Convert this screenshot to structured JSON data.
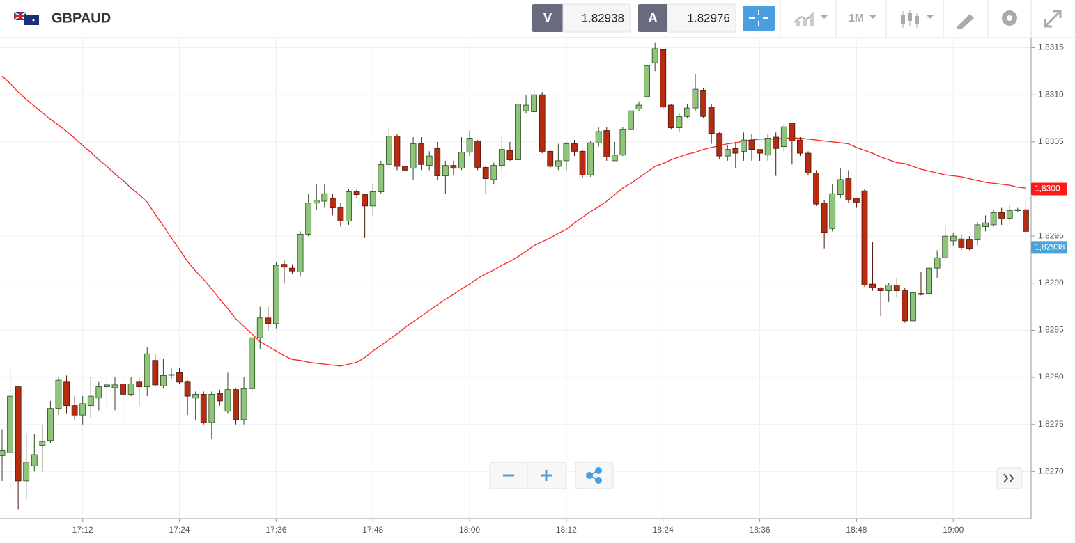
{
  "header": {
    "symbol": "GBPAUD",
    "bid_label": "V",
    "bid": "1.82938",
    "ask_label": "A",
    "ask": "1.82976",
    "timeframe": "1M"
  },
  "chart_data": {
    "type": "candlestick",
    "categories": [
      null,
      null,
      null,
      null,
      null,
      null,
      null,
      null,
      null,
      null,
      "17:12",
      null,
      null,
      null,
      null,
      null,
      null,
      null,
      null,
      null,
      null,
      null,
      "17:24",
      null,
      null,
      null,
      null,
      null,
      null,
      null,
      null,
      null,
      null,
      null,
      "17:36",
      null,
      null,
      null,
      null,
      null,
      null,
      null,
      null,
      null,
      null,
      null,
      "17:48",
      null,
      null,
      null,
      null,
      null,
      null,
      null,
      null,
      null,
      null,
      null,
      "18:00",
      null,
      null,
      null,
      null,
      null,
      null,
      null,
      null,
      null,
      null,
      null,
      "18:12",
      null,
      null,
      null,
      null,
      null,
      null,
      null,
      null,
      null,
      null,
      null,
      "18:24",
      null,
      null,
      null,
      null,
      null,
      null,
      null,
      null,
      null,
      null,
      null,
      "18:36",
      null,
      null,
      null,
      null,
      null,
      null,
      null,
      null,
      null,
      null,
      null,
      "18:48",
      null,
      null,
      null,
      null,
      null,
      null,
      null,
      null,
      null,
      null,
      null,
      "19:00",
      null,
      null,
      null,
      null,
      null,
      null,
      null,
      null,
      null
    ],
    "open": [
      1.82717,
      1.8272,
      1.8279,
      1.8269,
      1.82706,
      1.82728,
      1.82733,
      1.82767,
      1.82795,
      1.8277,
      1.8276,
      1.8277,
      1.82778,
      1.8279,
      1.82789,
      1.82793,
      1.82782,
      1.82795,
      1.8279,
      1.82818,
      1.82791,
      1.82803,
      1.82805,
      1.82795,
      1.82778,
      1.82782,
      1.82752,
      1.82783,
      1.82764,
      1.82787,
      1.82755,
      1.82788,
      1.82842,
      1.82863,
      1.82857,
      1.8292,
      1.82916,
      1.82912,
      1.82952,
      1.82985,
      1.82987,
      1.8299,
      1.8298,
      1.82966,
      1.82997,
      1.82994,
      1.82982,
      1.82997,
      1.83026,
      1.83056,
      1.83024,
      1.83022,
      1.83048,
      1.83025,
      1.83043,
      1.83014,
      1.83025,
      1.83022,
      1.83039,
      1.83051,
      1.83023,
      1.8301,
      1.83025,
      1.83041,
      1.83031,
      1.83083,
      1.83082,
      1.831,
      1.8304,
      1.83024,
      1.8303,
      1.83048,
      1.8304,
      1.83015,
      1.83049,
      1.83062,
      1.8303,
      1.83036,
      1.83063,
      1.83085,
      1.83098,
      1.83134,
      1.83148,
      1.83089,
      1.83065,
      1.83077,
      1.83086,
      1.83105,
      1.83087,
      1.83059,
      1.83035,
      1.83043,
      1.8304,
      1.83052,
      1.83042,
      1.83036,
      1.83055,
      1.83045,
      1.8307,
      1.83052,
      1.83038,
      1.83017,
      1.82985,
      1.82958,
      1.82994,
      1.83011,
      1.8299,
      1.82998,
      1.82899,
      1.82895,
      1.82892,
      1.82898,
      1.82892,
      1.8286,
      1.82889,
      1.82889,
      1.82916,
      1.82927,
      1.82945,
      1.82947,
      1.82946,
      1.82946,
      1.8296,
      1.82962,
      1.82975,
      1.82969,
      1.82977,
      1.82978
    ],
    "high": [
      1.82745,
      1.8281,
      1.8279,
      1.8274,
      1.8274,
      1.8275,
      1.82775,
      1.828,
      1.82802,
      1.8278,
      1.8278,
      1.828,
      1.82795,
      1.82798,
      1.828,
      1.828,
      1.828,
      1.828,
      1.82832,
      1.82825,
      1.8282,
      1.8281,
      1.8281,
      1.82797,
      1.82785,
      1.82785,
      1.82785,
      1.82787,
      1.82805,
      1.82788,
      1.828,
      1.82842,
      1.82875,
      1.82875,
      1.82922,
      1.82925,
      1.8292,
      1.82955,
      1.82995,
      1.83005,
      1.83005,
      1.82995,
      1.82985,
      1.83,
      1.83,
      1.82995,
      1.83005,
      1.8303,
      1.83066,
      1.83058,
      1.83028,
      1.83055,
      1.83055,
      1.8304,
      1.8305,
      1.8303,
      1.8303,
      1.83055,
      1.83062,
      1.83052,
      1.83025,
      1.83028,
      1.83055,
      1.8305,
      1.83092,
      1.831,
      1.83105,
      1.83103,
      1.83042,
      1.83048,
      1.8305,
      1.83052,
      1.83042,
      1.83051,
      1.83066,
      1.83066,
      1.8305,
      1.83066,
      1.8309,
      1.83093,
      1.83133,
      1.83155,
      1.83148,
      1.8309,
      1.8308,
      1.8309,
      1.83122,
      1.83107,
      1.8309,
      1.83061,
      1.83047,
      1.8305,
      1.8306,
      1.83058,
      1.8304,
      1.83058,
      1.8306,
      1.83068,
      1.8307,
      1.83055,
      1.8304,
      1.8302,
      1.82988,
      1.83005,
      1.83022,
      1.8302,
      1.8299,
      1.83,
      1.82944,
      1.82896,
      1.829,
      1.82905,
      1.82895,
      1.82892,
      1.82912,
      1.82918,
      1.82935,
      1.8296,
      1.82953,
      1.82952,
      1.8295,
      1.82965,
      1.82972,
      1.82978,
      1.8298,
      1.82983,
      1.8298,
      1.82987
    ],
    "low": [
      1.8269,
      1.8268,
      1.8266,
      1.8267,
      1.827,
      1.827,
      1.8273,
      1.8276,
      1.82762,
      1.82755,
      1.8275,
      1.82757,
      1.82765,
      1.8277,
      1.82765,
      1.8275,
      1.8278,
      1.8277,
      1.8278,
      1.8279,
      1.82788,
      1.82798,
      1.82793,
      1.8276,
      1.82755,
      1.8275,
      1.82735,
      1.8277,
      1.82762,
      1.8275,
      1.8275,
      1.82785,
      1.8283,
      1.8285,
      1.82852,
      1.829,
      1.8291,
      1.82907,
      1.8295,
      1.82978,
      1.8298,
      1.82972,
      1.8296,
      1.82962,
      1.8299,
      1.82948,
      1.82972,
      1.82995,
      1.83022,
      1.8302,
      1.83015,
      1.8301,
      1.8302,
      1.8302,
      1.8301,
      1.82995,
      1.83015,
      1.8302,
      1.83035,
      1.8302,
      1.82995,
      1.83005,
      1.8302,
      1.8303,
      1.83028,
      1.8308,
      1.8308,
      1.83038,
      1.83022,
      1.8302,
      1.8302,
      1.83035,
      1.83012,
      1.83013,
      1.83045,
      1.8303,
      1.8303,
      1.83035,
      1.83062,
      1.83083,
      1.83095,
      1.83125,
      1.83085,
      1.83063,
      1.8306,
      1.83075,
      1.83083,
      1.83075,
      1.83048,
      1.83032,
      1.8303,
      1.83022,
      1.8303,
      1.8303,
      1.8303,
      1.8303,
      1.83014,
      1.8304,
      1.83026,
      1.83035,
      1.83015,
      1.82982,
      1.82937,
      1.82955,
      1.8299,
      1.82985,
      1.8298,
      1.82896,
      1.82892,
      1.82865,
      1.8288,
      1.82885,
      1.82858,
      1.82858,
      1.82887,
      1.82885,
      1.82905,
      1.82925,
      1.8294,
      1.82935,
      1.82935,
      1.8294,
      1.82955,
      1.8296,
      1.82962,
      1.82967,
      1.82975,
      1.82954
    ],
    "close": [
      1.82722,
      1.8278,
      1.8269,
      1.8271,
      1.82718,
      1.82732,
      1.82767,
      1.82797,
      1.8277,
      1.8276,
      1.82772,
      1.8278,
      1.8279,
      1.82792,
      1.82792,
      1.82782,
      1.82793,
      1.8279,
      1.82825,
      1.82792,
      1.82802,
      1.82803,
      1.82795,
      1.8278,
      1.82782,
      1.82752,
      1.82782,
      1.82775,
      1.82787,
      1.82755,
      1.82788,
      1.82842,
      1.82863,
      1.82857,
      1.82919,
      1.82917,
      1.82913,
      1.82952,
      1.82985,
      1.82988,
      1.82995,
      1.8298,
      1.82966,
      1.82997,
      1.82994,
      1.82982,
      1.82997,
      1.83026,
      1.83056,
      1.83024,
      1.8302,
      1.83048,
      1.83026,
      1.83035,
      1.83014,
      1.83025,
      1.83022,
      1.83039,
      1.83054,
      1.83023,
      1.83011,
      1.83025,
      1.83042,
      1.83031,
      1.8309,
      1.83089,
      1.831,
      1.8304,
      1.83024,
      1.8303,
      1.83048,
      1.8304,
      1.83015,
      1.83049,
      1.83061,
      1.83034,
      1.83036,
      1.83063,
      1.83083,
      1.83089,
      1.83131,
      1.83149,
      1.83087,
      1.83065,
      1.83077,
      1.83086,
      1.83106,
      1.83077,
      1.83059,
      1.83035,
      1.83042,
      1.83038,
      1.83052,
      1.83042,
      1.83038,
      1.83054,
      1.83043,
      1.83066,
      1.83051,
      1.83038,
      1.83017,
      1.82984,
      1.82954,
      1.82995,
      1.8301,
      1.82989,
      1.82986,
      1.82898,
      1.82895,
      1.82892,
      1.82898,
      1.82892,
      1.8286,
      1.8289,
      1.82888,
      1.82916,
      1.82927,
      1.8295,
      1.8295,
      1.82938,
      1.82937,
      1.82962,
      1.82964,
      1.82975,
      1.82969,
      1.82977,
      1.82978,
      1.82955
    ],
    "up_color": "#8ec57a",
    "down_color": "#b72c10",
    "overlay": {
      "color": "#ff2020",
      "values": [
        1.8312,
        1.83112,
        1.83103,
        1.83095,
        1.83088,
        1.83081,
        1.83074,
        1.83068,
        1.83061,
        1.83054,
        1.83046,
        1.83039,
        1.83031,
        1.83024,
        1.83016,
        1.83009,
        1.83001,
        1.82994,
        1.82986,
        1.82973,
        1.82961,
        1.82948,
        1.82936,
        1.82923,
        1.82913,
        1.82904,
        1.82894,
        1.82883,
        1.82873,
        1.82862,
        1.82854,
        1.82846,
        1.82838,
        1.82833,
        1.82828,
        1.82823,
        1.82819,
        1.82818,
        1.82816,
        1.82815,
        1.82814,
        1.82813,
        1.82812,
        1.82814,
        1.82816,
        1.82821,
        1.82828,
        1.82834,
        1.8284,
        1.82846,
        1.82853,
        1.82859,
        1.82865,
        1.82871,
        1.82877,
        1.82883,
        1.82888,
        1.82894,
        1.82899,
        1.82905,
        1.8291,
        1.82914,
        1.82919,
        1.82923,
        1.82928,
        1.82934,
        1.8294,
        1.82944,
        1.82948,
        1.82953,
        1.82957,
        1.82964,
        1.8297,
        1.82976,
        1.82981,
        1.82987,
        1.82994,
        1.83001,
        1.83006,
        1.83012,
        1.83018,
        1.83024,
        1.83027,
        1.83031,
        1.83034,
        1.83037,
        1.83039,
        1.83042,
        1.83044,
        1.83046,
        1.83048,
        1.83049,
        1.83051,
        1.83052,
        1.83053,
        1.83053,
        1.83053,
        1.83054,
        1.83054,
        1.83054,
        1.83053,
        1.83052,
        1.83051,
        1.8305,
        1.83049,
        1.83048,
        1.83044,
        1.83041,
        1.83038,
        1.83034,
        1.83031,
        1.83028,
        1.83027,
        1.83024,
        1.83021,
        1.83019,
        1.83017,
        1.83015,
        1.83014,
        1.83013,
        1.83011,
        1.83009,
        1.83007,
        1.83006,
        1.83005,
        1.83004,
        1.83002,
        1.83001
      ]
    },
    "price_tags": [
      {
        "value": 1.83,
        "label": "1,8300",
        "color": "#ff1a1a"
      },
      {
        "value": 1.82938,
        "label": "1,82938",
        "color": "#4aa3d8"
      }
    ],
    "ylim": [
      1.8265,
      1.8316
    ],
    "yticks": [
      {
        "value": 1.827,
        "label": "1,8270"
      },
      {
        "value": 1.8275,
        "label": "1,8275"
      },
      {
        "value": 1.828,
        "label": "1,8280"
      },
      {
        "value": 1.8285,
        "label": "1,8285"
      },
      {
        "value": 1.829,
        "label": "1,8290"
      },
      {
        "value": 1.8295,
        "label": "1,8295"
      },
      {
        "value": 1.83,
        "label": "1,8300"
      },
      {
        "value": 1.8305,
        "label": "1,8305"
      },
      {
        "value": 1.831,
        "label": "1,8310"
      },
      {
        "value": 1.8315,
        "label": "1,8315"
      }
    ],
    "grid": true
  }
}
